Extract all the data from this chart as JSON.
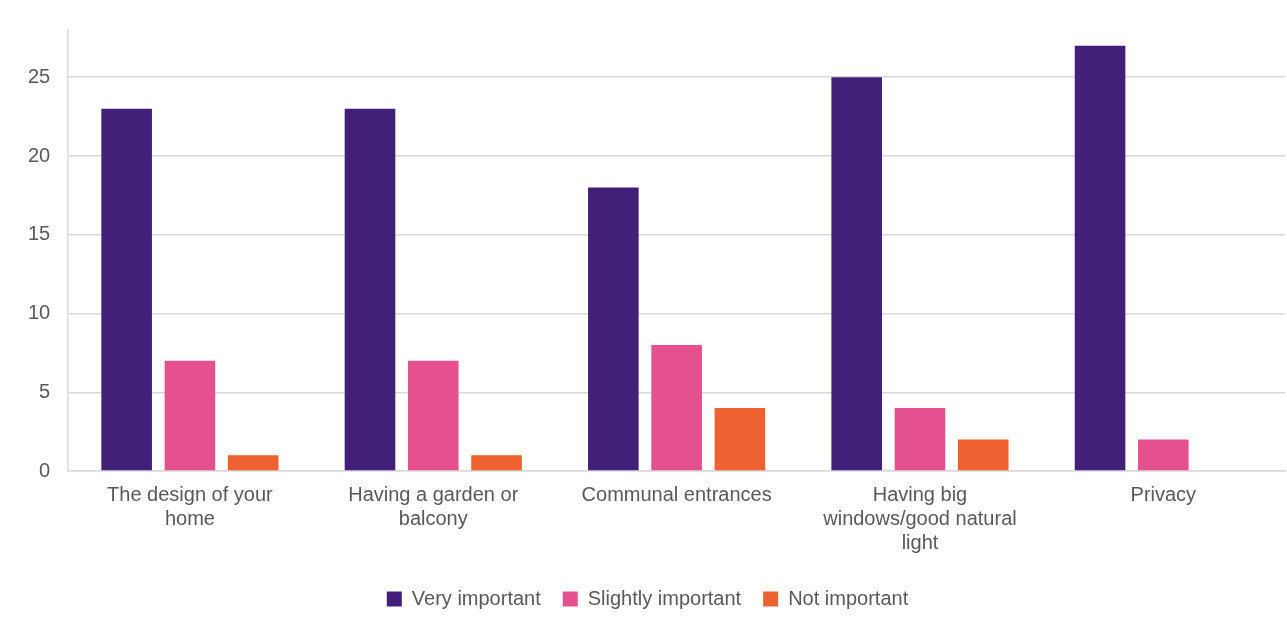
{
  "chart_data": {
    "type": "bar",
    "categories": [
      "The design of your home",
      "Having a garden or balcony",
      "Communal entrances",
      "Having big windows/good natural light",
      "Privacy"
    ],
    "series": [
      {
        "name": "Very important",
        "color": "#42207a",
        "values": [
          23,
          23,
          18,
          25,
          27
        ]
      },
      {
        "name": "Slightly important",
        "color": "#e5508e",
        "values": [
          7,
          7,
          8,
          4,
          2
        ]
      },
      {
        "name": "Not important",
        "color": "#ee6130",
        "values": [
          1,
          1,
          4,
          2,
          0
        ]
      }
    ],
    "ylim": [
      0,
      28
    ],
    "yticks": [
      0,
      5,
      10,
      15,
      20,
      25
    ],
    "grid": "y",
    "legend": "bottom"
  }
}
